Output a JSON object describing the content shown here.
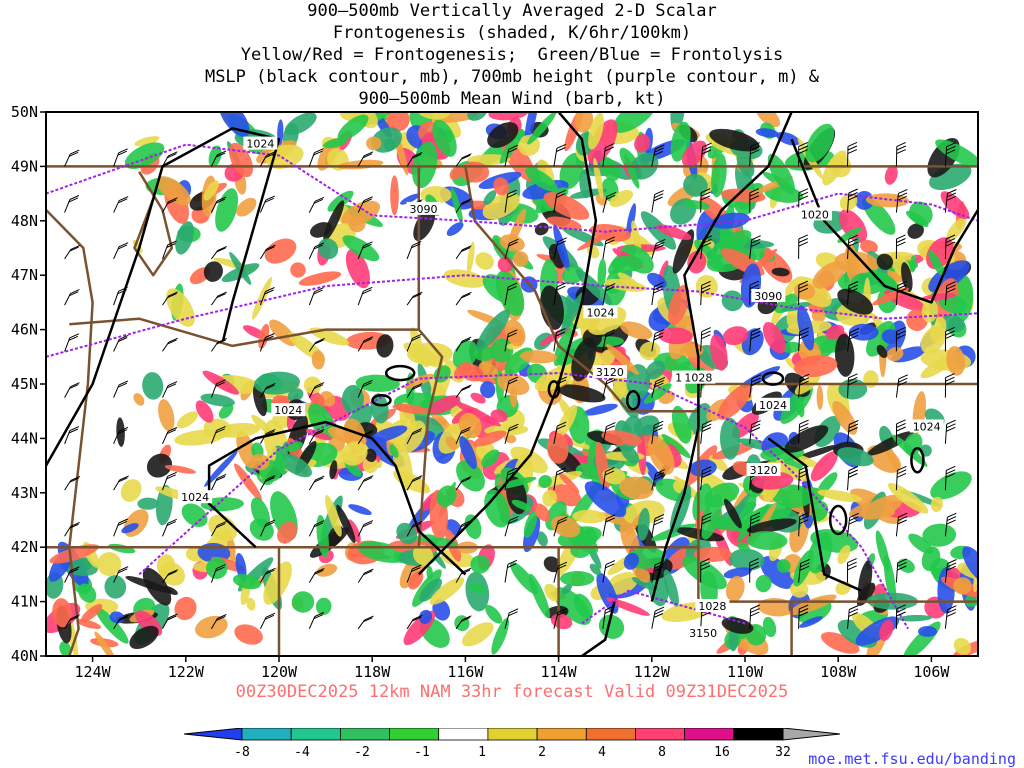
{
  "title_lines": [
    "900–500mb Vertically Averaged 2-D Scalar",
    "Frontogenesis (shaded, K/6hr/100km)",
    "Yellow/Red = Frontogenesis;  Green/Blue = Frontolysis",
    "MSLP (black contour, mb), 700mb height (purple contour, m) &",
    "900–500mb Mean Wind (barb, kt)"
  ],
  "valid_text": "00Z30DEC2025 12km NAM 33hr forecast Valid 09Z31DEC2025",
  "credit_text": "moe.met.fsu.edu/banding",
  "map": {
    "lon_range": [
      -125,
      -105
    ],
    "lat_range": [
      40,
      50
    ],
    "lat_ticks": [
      "40N",
      "41N",
      "42N",
      "43N",
      "44N",
      "45N",
      "46N",
      "47N",
      "48N",
      "49N",
      "50N"
    ],
    "lon_ticks": [
      "124W",
      "122W",
      "120W",
      "118W",
      "116W",
      "114W",
      "112W",
      "110W",
      "108W",
      "106W"
    ],
    "mslp_labels": [
      "1024",
      "1024",
      "1024",
      "1024",
      "1024",
      "1028",
      "1024",
      "1020",
      "1024",
      "1028"
    ],
    "height_labels": [
      "3090",
      "3090",
      "3120",
      "3120",
      "3150"
    ],
    "colors": {
      "border": "#7a5230",
      "mslp": "#000000",
      "height": "#a020f0",
      "frontogenesis": [
        "#e8d84a",
        "#f0a040",
        "#ff6a50",
        "#ff3c78",
        "#1a1a1a"
      ],
      "frontolysis": [
        "#22c84a",
        "#2aaa70",
        "#2850e8"
      ]
    }
  },
  "colorbar": {
    "labels": [
      "-8",
      "-4",
      "-2",
      "-1",
      "1",
      "2",
      "4",
      "8",
      "16",
      "32"
    ],
    "colors": [
      "#2040f0",
      "#20b0c0",
      "#20c890",
      "#30c060",
      "#30d030",
      "#ffffff",
      "#e0d030",
      "#f0a030",
      "#f07030",
      "#ff4070",
      "#e0108a",
      "#000000",
      "#a8a8a8"
    ]
  }
}
